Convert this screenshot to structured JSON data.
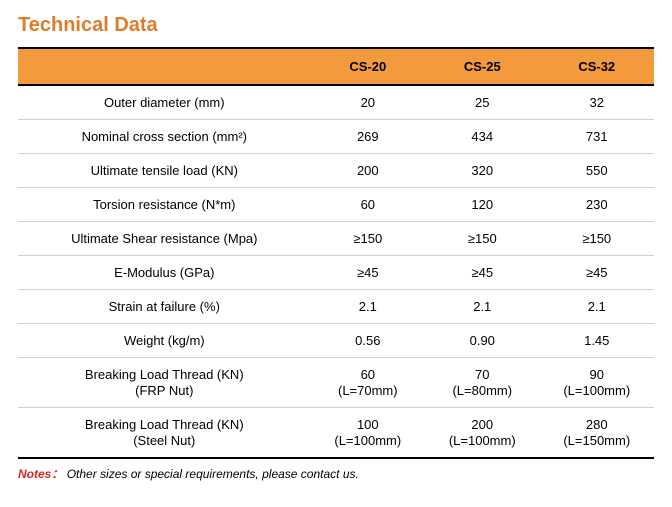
{
  "title": "Technical Data",
  "title_color": "#e07b29",
  "header_bg": "#f39a3e",
  "columns": [
    "",
    "CS-20",
    "CS-25",
    "CS-32"
  ],
  "rows": [
    {
      "label": "Outer diameter (mm)",
      "c1": "20",
      "c2": "25",
      "c3": "32"
    },
    {
      "label": "Nominal cross section (mm²)",
      "c1": "269",
      "c2": "434",
      "c3": "731"
    },
    {
      "label": "Ultimate tensile load (KN)",
      "c1": "200",
      "c2": "320",
      "c3": "550"
    },
    {
      "label": "Torsion resistance (N*m)",
      "c1": "60",
      "c2": "120",
      "c3": "230"
    },
    {
      "label": "Ultimate Shear resistance (Mpa)",
      "c1": "≥150",
      "c2": "≥150",
      "c3": "≥150"
    },
    {
      "label": "E-Modulus (GPa)",
      "c1": "≥45",
      "c2": "≥45",
      "c3": "≥45"
    },
    {
      "label": "Strain at failure (%)",
      "c1": "2.1",
      "c2": "2.1",
      "c3": "2.1"
    },
    {
      "label": "Weight (kg/m)",
      "c1": "0.56",
      "c2": "0.90",
      "c3": "1.45"
    },
    {
      "label": "Breaking Load Thread (KN)",
      "sub": "(FRP Nut)",
      "c1": "60",
      "c1s": "(L=70mm)",
      "c2": "70",
      "c2s": "(L=80mm)",
      "c3": "90",
      "c3s": "(L=100mm)"
    },
    {
      "label": "Breaking Load Thread (KN)",
      "sub": "(Steel Nut)",
      "c1": "100",
      "c1s": "(L=100mm)",
      "c2": "200",
      "c2s": "(L=100mm)",
      "c3": "280",
      "c3s": "(L=150mm)"
    }
  ],
  "notes_label": "Notes：",
  "notes_label_color": "#d82a2a",
  "notes_text": "Other sizes or special requirements, please contact us."
}
